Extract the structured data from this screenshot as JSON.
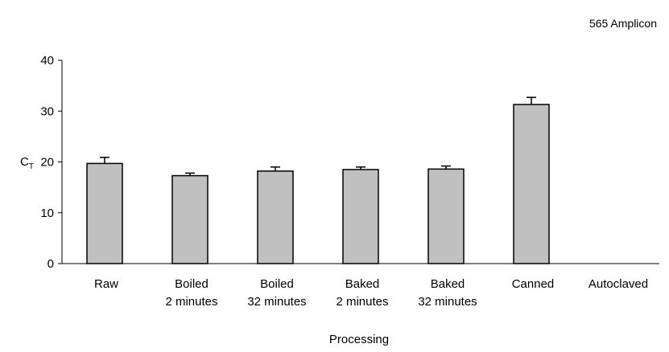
{
  "chart_data": {
    "type": "bar",
    "annotation": "565 Amplicon",
    "xlabel": "Processing",
    "ylabel_main": "C",
    "ylabel_sub": "T",
    "ylim": [
      0,
      40
    ],
    "yticks": [
      0,
      10,
      20,
      30,
      40
    ],
    "grid": false,
    "categories": [
      [
        "Raw"
      ],
      [
        "Boiled",
        "2 minutes"
      ],
      [
        "Boiled",
        "32 minutes"
      ],
      [
        "Baked",
        "2 minutes"
      ],
      [
        "Baked",
        "32 minutes"
      ],
      [
        "Canned"
      ],
      [
        "Autoclaved"
      ]
    ],
    "values": [
      19.7,
      17.3,
      18.2,
      18.5,
      18.6,
      31.3,
      null
    ],
    "errors": [
      1.2,
      0.5,
      0.8,
      0.5,
      0.6,
      1.4,
      null
    ],
    "bar_color": "#c0c0c0"
  }
}
